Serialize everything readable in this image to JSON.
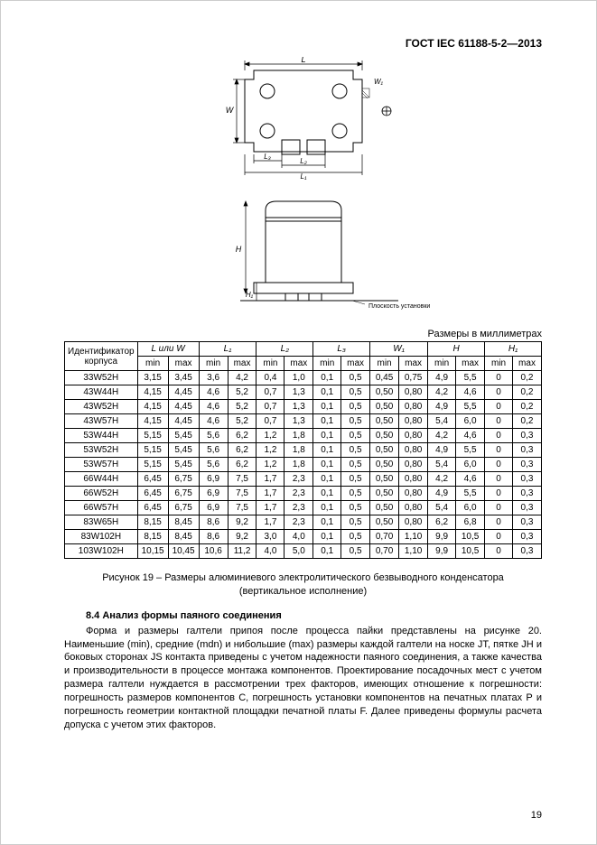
{
  "header": "ГОСТ IEC 61188-5-2—2013",
  "units_label": "Размеры в миллиметрах",
  "caption_line1": "Рисунок 19 – Размеры алюминиевого электролитического безвыводного конденсатора",
  "caption_line2": "(вертикальное исполнение)",
  "section_num": "8.4",
  "section_title": "Анализ формы паяного соединения",
  "body_text": "Форма и размеры галтели припоя после процесса пайки представлены на рисунке 20. Наименьшие (min), средние (mdn) и нибольшие (max) размеры каждой галтели на носке JT, пятке JH и боковых сторонах JS контакта приведены с учетом надежности паяного соединения, а также качества и производительности в процессе монтажа компонентов. Проектирование посадочных мест с учетом размера галтели нуждается в рассмотрении трех факторов, имеющих отношение к погрешности: погрешность размеров компонентов C, погрешность установки компонентов на печатных платах P и погрешность геометрии контактной площадки печатной платы F. Далее приведены формулы расчета допуска с учетом этих факторов.",
  "page_num": "19",
  "table": {
    "head_ident": "Идентификатор корпуса",
    "groups": [
      "L или W",
      "L₁",
      "L₂",
      "L₃",
      "W₁",
      "H",
      "H₁"
    ],
    "sub": [
      "min",
      "max"
    ],
    "rows": [
      {
        "id": "33W52H",
        "v": [
          "3,15",
          "3,45",
          "3,6",
          "4,2",
          "0,4",
          "1,0",
          "0,1",
          "0,5",
          "0,45",
          "0,75",
          "4,9",
          "5,5",
          "0",
          "0,2"
        ]
      },
      {
        "id": "43W44H",
        "v": [
          "4,15",
          "4,45",
          "4,6",
          "5,2",
          "0,7",
          "1,3",
          "0,1",
          "0,5",
          "0,50",
          "0,80",
          "4,2",
          "4,6",
          "0",
          "0,2"
        ]
      },
      {
        "id": "43W52H",
        "v": [
          "4,15",
          "4,45",
          "4,6",
          "5,2",
          "0,7",
          "1,3",
          "0,1",
          "0,5",
          "0,50",
          "0,80",
          "4,9",
          "5,5",
          "0",
          "0,2"
        ]
      },
      {
        "id": "43W57H",
        "v": [
          "4,15",
          "4,45",
          "4,6",
          "5,2",
          "0,7",
          "1,3",
          "0,1",
          "0,5",
          "0,50",
          "0,80",
          "5,4",
          "6,0",
          "0",
          "0,2"
        ]
      },
      {
        "id": "53W44H",
        "v": [
          "5,15",
          "5,45",
          "5,6",
          "6,2",
          "1,2",
          "1,8",
          "0,1",
          "0,5",
          "0,50",
          "0,80",
          "4,2",
          "4,6",
          "0",
          "0,3"
        ]
      },
      {
        "id": "53W52H",
        "v": [
          "5,15",
          "5,45",
          "5,6",
          "6,2",
          "1,2",
          "1,8",
          "0,1",
          "0,5",
          "0,50",
          "0,80",
          "4,9",
          "5,5",
          "0",
          "0,3"
        ]
      },
      {
        "id": "53W57H",
        "v": [
          "5,15",
          "5,45",
          "5,6",
          "6,2",
          "1,2",
          "1,8",
          "0,1",
          "0,5",
          "0,50",
          "0,80",
          "5,4",
          "6,0",
          "0",
          "0,3"
        ]
      },
      {
        "id": "66W44H",
        "v": [
          "6,45",
          "6,75",
          "6,9",
          "7,5",
          "1,7",
          "2,3",
          "0,1",
          "0,5",
          "0,50",
          "0,80",
          "4,2",
          "4,6",
          "0",
          "0,3"
        ]
      },
      {
        "id": "66W52H",
        "v": [
          "6,45",
          "6,75",
          "6,9",
          "7,5",
          "1,7",
          "2,3",
          "0,1",
          "0,5",
          "0,50",
          "0,80",
          "4,9",
          "5,5",
          "0",
          "0,3"
        ]
      },
      {
        "id": "66W57H",
        "v": [
          "6,45",
          "6,75",
          "6,9",
          "7,5",
          "1,7",
          "2,3",
          "0,1",
          "0,5",
          "0,50",
          "0,80",
          "5,4",
          "6,0",
          "0",
          "0,3"
        ]
      },
      {
        "id": "83W65H",
        "v": [
          "8,15",
          "8,45",
          "8,6",
          "9,2",
          "1,7",
          "2,3",
          "0,1",
          "0,5",
          "0,50",
          "0,80",
          "6,2",
          "6,8",
          "0",
          "0,3"
        ]
      },
      {
        "id": "83W102H",
        "v": [
          "8,15",
          "8,45",
          "8,6",
          "9,2",
          "3,0",
          "4,0",
          "0,1",
          "0,5",
          "0,70",
          "1,10",
          "9,9",
          "10,5",
          "0",
          "0,3"
        ]
      },
      {
        "id": "103W102H",
        "v": [
          "10,15",
          "10,45",
          "10,6",
          "11,2",
          "4,0",
          "5,0",
          "0,1",
          "0,5",
          "0,70",
          "1,10",
          "9,9",
          "10,5",
          "0",
          "0,3"
        ]
      }
    ]
  },
  "diagram": {
    "labels": {
      "L": "L",
      "W": "W",
      "H": "H",
      "H1": "H₁",
      "W1": "W₁",
      "L1": "L₁",
      "L2": "L₂",
      "L3": "L₃"
    },
    "footnote": "Плоскость установки"
  }
}
